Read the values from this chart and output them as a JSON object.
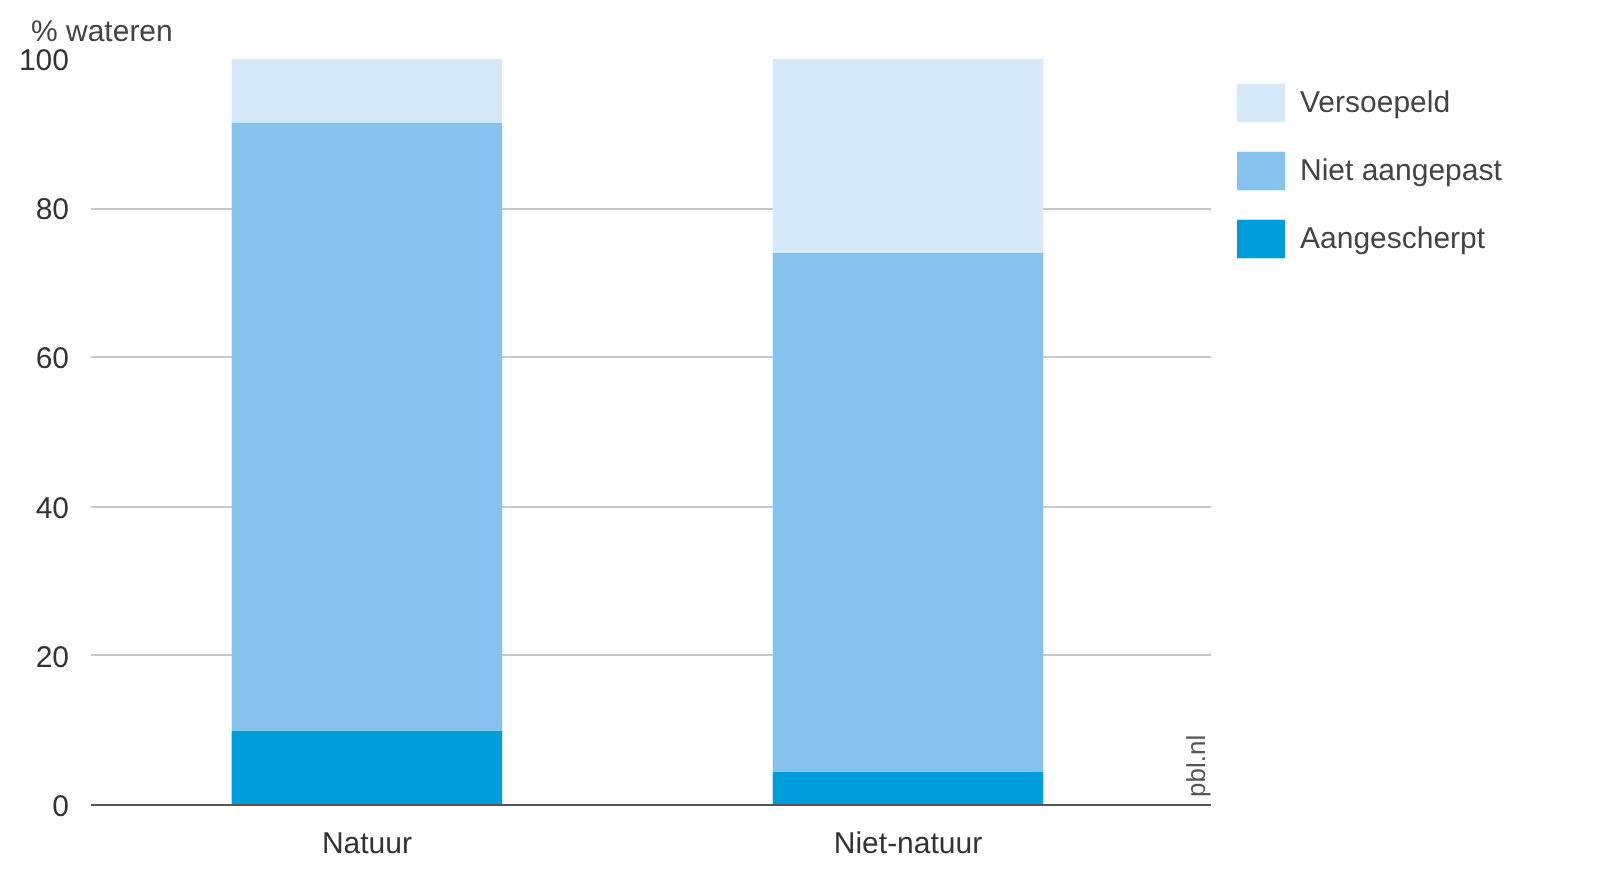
{
  "chart_data": {
    "type": "bar",
    "stacked": true,
    "ylabel": "% wateren",
    "categories": [
      "Natuur",
      "Niet-natuur"
    ],
    "series": [
      {
        "name": "Aangescherpt",
        "color": "#009ddd",
        "values": [
          10,
          4.5
        ]
      },
      {
        "name": "Niet aangepast",
        "color": "#85c3ee",
        "values": [
          81.5,
          69.5
        ]
      },
      {
        "name": "Versoepeld",
        "color": "#d6e9f8",
        "values": [
          8.5,
          26
        ]
      }
    ],
    "ylim": [
      0,
      100
    ],
    "yticks": [
      0,
      20,
      40,
      60,
      80,
      100
    ],
    "grid": "y",
    "legend": "top right",
    "annotations": [
      "pbl.nl"
    ]
  }
}
